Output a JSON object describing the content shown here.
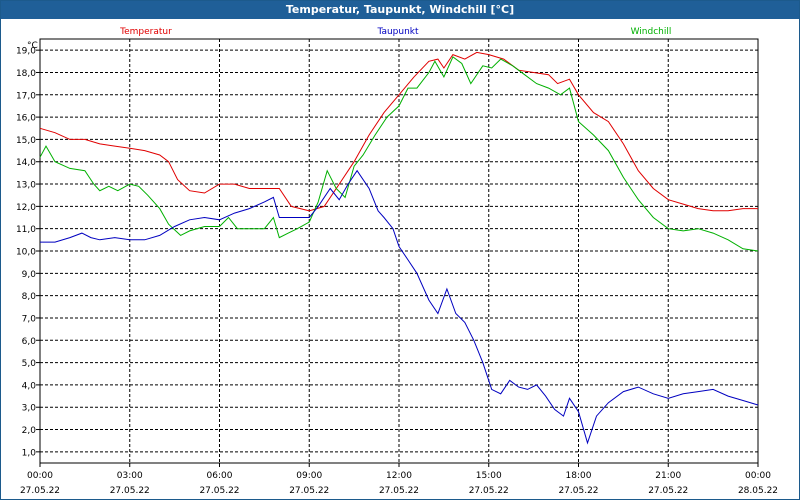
{
  "window": {
    "title": "Temperatur, Taupunkt, Windchill [°C]"
  },
  "chart_data": {
    "type": "line",
    "title": "Temperatur, Taupunkt, Windchill [°C]",
    "yunit": "°C",
    "ylim": [
      0.5,
      19.5
    ],
    "xlim_hours": [
      0,
      24
    ],
    "grid": true,
    "yticks": [
      "1,0",
      "2,0",
      "3,0",
      "4,0",
      "5,0",
      "6,0",
      "7,0",
      "8,0",
      "9,0",
      "10,0",
      "11,0",
      "12,0",
      "13,0",
      "14,0",
      "15,0",
      "16,0",
      "17,0",
      "18,0",
      "19,0"
    ],
    "xticks": [
      {
        "time": "00:00",
        "date": "27.05.22"
      },
      {
        "time": "03:00",
        "date": "27.05.22"
      },
      {
        "time": "06:00",
        "date": "27.05.22"
      },
      {
        "time": "09:00",
        "date": "27.05.22"
      },
      {
        "time": "12:00",
        "date": "27.05.22"
      },
      {
        "time": "15:00",
        "date": "27.05.22"
      },
      {
        "time": "18:00",
        "date": "27.05.22"
      },
      {
        "time": "21:00",
        "date": "27.05.22"
      },
      {
        "time": "00:00",
        "date": "28.05.22"
      }
    ],
    "series": [
      {
        "name": "Temperatur",
        "color": "#e00000",
        "points": [
          [
            0,
            15.5
          ],
          [
            0.5,
            15.3
          ],
          [
            1,
            15.0
          ],
          [
            1.5,
            15.0
          ],
          [
            2,
            14.8
          ],
          [
            2.5,
            14.7
          ],
          [
            3,
            14.6
          ],
          [
            3.5,
            14.5
          ],
          [
            4,
            14.3
          ],
          [
            4.3,
            14.0
          ],
          [
            4.6,
            13.2
          ],
          [
            5,
            12.7
          ],
          [
            5.5,
            12.6
          ],
          [
            6,
            13.0
          ],
          [
            6.5,
            13.0
          ],
          [
            7,
            12.8
          ],
          [
            7.5,
            12.8
          ],
          [
            8,
            12.8
          ],
          [
            8.4,
            12.0
          ],
          [
            9,
            11.8
          ],
          [
            9.5,
            12.0
          ],
          [
            10,
            13.0
          ],
          [
            10.5,
            14.0
          ],
          [
            11,
            15.2
          ],
          [
            11.5,
            16.2
          ],
          [
            12,
            17.0
          ],
          [
            12.5,
            17.8
          ],
          [
            13,
            18.5
          ],
          [
            13.3,
            18.6
          ],
          [
            13.5,
            18.2
          ],
          [
            13.8,
            18.8
          ],
          [
            14.2,
            18.6
          ],
          [
            14.6,
            18.9
          ],
          [
            15,
            18.8
          ],
          [
            15.5,
            18.6
          ],
          [
            16,
            18.1
          ],
          [
            16.5,
            18.0
          ],
          [
            17,
            17.9
          ],
          [
            17.3,
            17.5
          ],
          [
            17.7,
            17.7
          ],
          [
            18,
            17.0
          ],
          [
            18.5,
            16.2
          ],
          [
            19,
            15.8
          ],
          [
            19.5,
            14.8
          ],
          [
            20,
            13.6
          ],
          [
            20.5,
            12.8
          ],
          [
            21,
            12.3
          ],
          [
            21.5,
            12.1
          ],
          [
            22,
            11.9
          ],
          [
            22.5,
            11.8
          ],
          [
            23,
            11.8
          ],
          [
            23.5,
            11.9
          ],
          [
            24,
            11.9
          ]
        ]
      },
      {
        "name": "Taupunkt",
        "color": "#0000c0",
        "points": [
          [
            0,
            10.4
          ],
          [
            0.5,
            10.4
          ],
          [
            1,
            10.6
          ],
          [
            1.4,
            10.8
          ],
          [
            1.7,
            10.6
          ],
          [
            2,
            10.5
          ],
          [
            2.5,
            10.6
          ],
          [
            3,
            10.5
          ],
          [
            3.5,
            10.5
          ],
          [
            4,
            10.7
          ],
          [
            4.5,
            11.1
          ],
          [
            5,
            11.4
          ],
          [
            5.5,
            11.5
          ],
          [
            6,
            11.4
          ],
          [
            6.5,
            11.7
          ],
          [
            7,
            11.9
          ],
          [
            7.5,
            12.2
          ],
          [
            7.8,
            12.4
          ],
          [
            8,
            11.5
          ],
          [
            8.5,
            11.5
          ],
          [
            9,
            11.5
          ],
          [
            9.3,
            12.0
          ],
          [
            9.7,
            12.8
          ],
          [
            10,
            12.3
          ],
          [
            10.3,
            13.0
          ],
          [
            10.6,
            13.6
          ],
          [
            11,
            12.8
          ],
          [
            11.3,
            11.8
          ],
          [
            11.5,
            11.5
          ],
          [
            11.8,
            11.0
          ],
          [
            12,
            10.2
          ],
          [
            12.3,
            9.6
          ],
          [
            12.6,
            9.0
          ],
          [
            13,
            7.8
          ],
          [
            13.3,
            7.2
          ],
          [
            13.6,
            8.3
          ],
          [
            13.9,
            7.2
          ],
          [
            14.2,
            6.8
          ],
          [
            14.5,
            6.0
          ],
          [
            14.8,
            5.0
          ],
          [
            15.1,
            3.8
          ],
          [
            15.4,
            3.6
          ],
          [
            15.7,
            4.2
          ],
          [
            16,
            3.9
          ],
          [
            16.3,
            3.8
          ],
          [
            16.6,
            4.0
          ],
          [
            16.9,
            3.5
          ],
          [
            17.2,
            2.9
          ],
          [
            17.5,
            2.6
          ],
          [
            17.7,
            3.4
          ],
          [
            18,
            2.8
          ],
          [
            18.3,
            1.4
          ],
          [
            18.6,
            2.6
          ],
          [
            19,
            3.2
          ],
          [
            19.5,
            3.7
          ],
          [
            20,
            3.9
          ],
          [
            20.5,
            3.6
          ],
          [
            21,
            3.4
          ],
          [
            21.5,
            3.6
          ],
          [
            22,
            3.7
          ],
          [
            22.5,
            3.8
          ],
          [
            23,
            3.5
          ],
          [
            23.5,
            3.3
          ],
          [
            24,
            3.1
          ]
        ]
      },
      {
        "name": "Windchill",
        "color": "#00b000",
        "points": [
          [
            0,
            14.2
          ],
          [
            0.2,
            14.7
          ],
          [
            0.5,
            14.0
          ],
          [
            1,
            13.7
          ],
          [
            1.5,
            13.6
          ],
          [
            1.8,
            13.0
          ],
          [
            2,
            12.7
          ],
          [
            2.3,
            12.9
          ],
          [
            2.6,
            12.7
          ],
          [
            3,
            13.0
          ],
          [
            3.3,
            12.9
          ],
          [
            3.6,
            12.5
          ],
          [
            4,
            11.9
          ],
          [
            4.3,
            11.2
          ],
          [
            4.7,
            10.7
          ],
          [
            5,
            10.9
          ],
          [
            5.5,
            11.1
          ],
          [
            6,
            11.1
          ],
          [
            6.3,
            11.5
          ],
          [
            6.6,
            11.0
          ],
          [
            7,
            11.0
          ],
          [
            7.5,
            11.0
          ],
          [
            7.8,
            11.5
          ],
          [
            8,
            10.6
          ],
          [
            8.3,
            10.8
          ],
          [
            8.6,
            11.0
          ],
          [
            9,
            11.3
          ],
          [
            9.3,
            12.2
          ],
          [
            9.6,
            13.6
          ],
          [
            9.9,
            12.8
          ],
          [
            10.2,
            12.4
          ],
          [
            10.5,
            13.8
          ],
          [
            10.8,
            14.3
          ],
          [
            11.2,
            15.2
          ],
          [
            11.6,
            16.0
          ],
          [
            12,
            16.5
          ],
          [
            12.3,
            17.3
          ],
          [
            12.6,
            17.3
          ],
          [
            13,
            18.0
          ],
          [
            13.2,
            18.5
          ],
          [
            13.5,
            17.8
          ],
          [
            13.8,
            18.7
          ],
          [
            14.1,
            18.4
          ],
          [
            14.4,
            17.5
          ],
          [
            14.8,
            18.3
          ],
          [
            15.1,
            18.2
          ],
          [
            15.4,
            18.6
          ],
          [
            15.8,
            18.3
          ],
          [
            16.2,
            17.9
          ],
          [
            16.6,
            17.5
          ],
          [
            17,
            17.3
          ],
          [
            17.4,
            17.0
          ],
          [
            17.7,
            17.3
          ],
          [
            18,
            15.8
          ],
          [
            18.5,
            15.2
          ],
          [
            19,
            14.5
          ],
          [
            19.5,
            13.3
          ],
          [
            20,
            12.3
          ],
          [
            20.5,
            11.5
          ],
          [
            21,
            11.0
          ],
          [
            21.5,
            10.9
          ],
          [
            22,
            11.0
          ],
          [
            22.5,
            10.8
          ],
          [
            23,
            10.5
          ],
          [
            23.5,
            10.1
          ],
          [
            24,
            10.0
          ]
        ]
      }
    ]
  }
}
